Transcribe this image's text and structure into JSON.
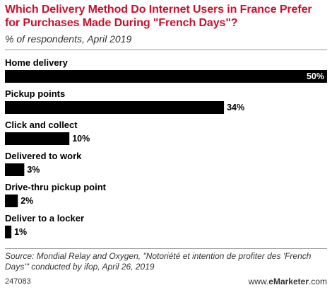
{
  "colors": {
    "title": "#c8102e",
    "bar": "#000000",
    "bar_label_inside": "#ffffff",
    "bar_label_outside": "#000000",
    "text_muted": "#333333"
  },
  "header": {
    "title": "Which Delivery Method Do Internet Users in France Prefer for Purchases Made During \"French Days\"?",
    "subtitle": "% of respondents, April 2019"
  },
  "chart_data": {
    "type": "bar",
    "orientation": "horizontal",
    "title": "Which Delivery Method Do Internet Users in France Prefer for Purchases Made During \"French Days\"?",
    "subtitle": "% of respondents, April 2019",
    "categories": [
      "Home delivery",
      "Pickup points",
      "Click and collect",
      "Delivered to work",
      "Drive-thru pickup point",
      "Deliver to a locker"
    ],
    "values": [
      50,
      34,
      10,
      3,
      2,
      1
    ],
    "value_labels": [
      "50%",
      "34%",
      "10%",
      "3%",
      "2%",
      "1%"
    ],
    "xlim": [
      0,
      50
    ],
    "grid": false,
    "legend": "none"
  },
  "footer": {
    "source": "Source: Mondial Relay and Oxygen, \"Notoriété et intention de profiter des 'French Days'\" conducted by ifop, April 26, 2019",
    "chart_id": "247083",
    "brand_prefix": "www.",
    "brand_name": "eMarketer",
    "brand_suffix": ".com"
  }
}
